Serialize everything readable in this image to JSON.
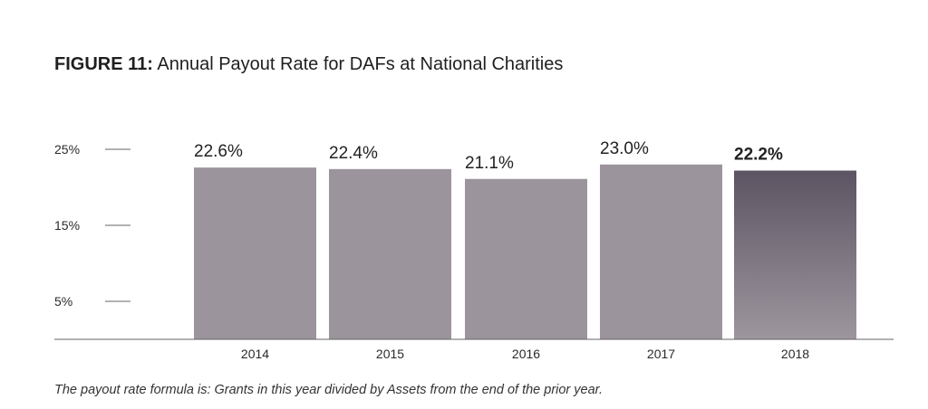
{
  "title": {
    "figure_label": "FIGURE 11:",
    "text": "Annual Payout Rate for DAFs at National Charities"
  },
  "caption": "The payout rate formula is: Grants in this year divided by Assets from the end of the prior year.",
  "colors": {
    "bar": "#9c949c",
    "highlight_top": "#5c5462",
    "highlight_bottom": "#9e969e",
    "axis": "#666666",
    "text": "#222222"
  },
  "chart_data": {
    "type": "bar",
    "categories": [
      "2014",
      "2015",
      "2016",
      "2017",
      "2018"
    ],
    "values": [
      22.6,
      22.4,
      21.1,
      23.0,
      22.2
    ],
    "data_labels": [
      "22.6%",
      "22.4%",
      "21.1%",
      "23.0%",
      "22.2%"
    ],
    "highlight_category": "2018",
    "yticks": [
      {
        "value": 5,
        "label": "5%"
      },
      {
        "value": 15,
        "label": "15%"
      },
      {
        "value": 25,
        "label": "25%"
      }
    ],
    "ylim": [
      0,
      25
    ],
    "title": "Annual Payout Rate for DAFs at National Charities",
    "xlabel": "",
    "ylabel": "",
    "grid": false
  }
}
